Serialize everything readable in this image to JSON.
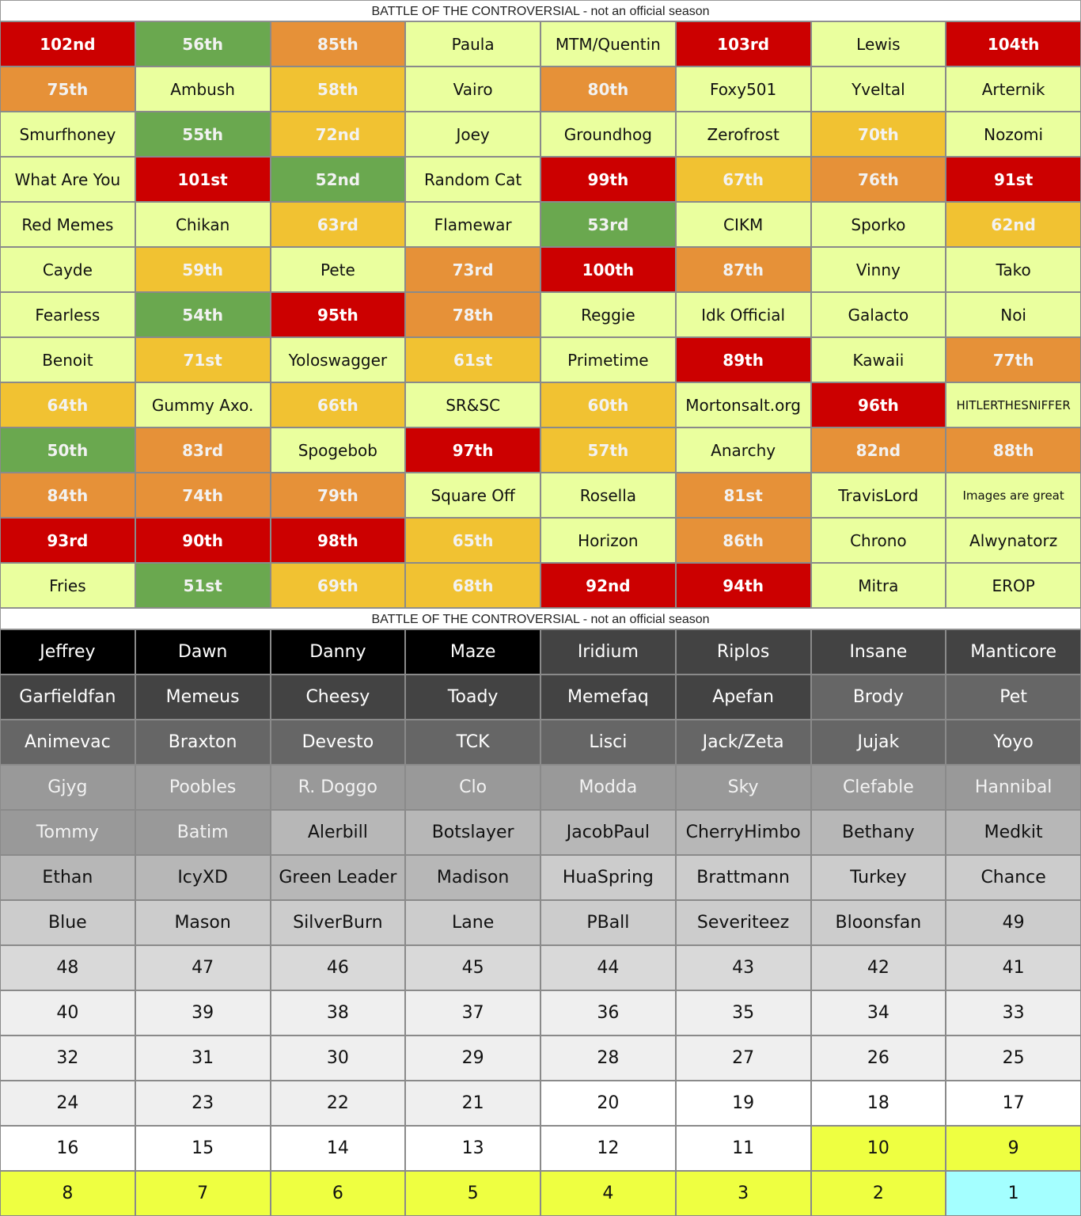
{
  "tables": [
    {
      "title": "BATTLE OF THE CONTROVERSIAL - not an official season",
      "rows": [
        [
          {
            "text": "102nd",
            "fill": "#cc0000"
          },
          {
            "text": "56th",
            "fill": "#6aa84f"
          },
          {
            "text": "85th",
            "fill": "#e69138"
          },
          {
            "text": "Paula",
            "fill": "#eaff9e"
          },
          {
            "text": "MTM/Quentin",
            "fill": "#eaff9e"
          },
          {
            "text": "103rd",
            "fill": "#cc0000"
          },
          {
            "text": "Lewis",
            "fill": "#eaff9e"
          },
          {
            "text": "104th",
            "fill": "#cc0000"
          }
        ],
        [
          {
            "text": "75th",
            "fill": "#e69138"
          },
          {
            "text": "Ambush",
            "fill": "#eaff9e"
          },
          {
            "text": "58th",
            "fill": "#f1c232"
          },
          {
            "text": "Vairo",
            "fill": "#eaff9e"
          },
          {
            "text": "80th",
            "fill": "#e69138"
          },
          {
            "text": "Foxy501",
            "fill": "#eaff9e"
          },
          {
            "text": "Yveltal",
            "fill": "#eaff9e"
          },
          {
            "text": "Arternik",
            "fill": "#eaff9e"
          }
        ],
        [
          {
            "text": "Smurfhoney",
            "fill": "#eaff9e"
          },
          {
            "text": "55th",
            "fill": "#6aa84f"
          },
          {
            "text": "72nd",
            "fill": "#f1c232"
          },
          {
            "text": "Joey",
            "fill": "#eaff9e"
          },
          {
            "text": "Groundhog",
            "fill": "#eaff9e"
          },
          {
            "text": "Zerofrost",
            "fill": "#eaff9e"
          },
          {
            "text": "70th",
            "fill": "#f1c232"
          },
          {
            "text": "Nozomi",
            "fill": "#eaff9e"
          }
        ],
        [
          {
            "text": "What Are You",
            "fill": "#eaff9e"
          },
          {
            "text": "101st",
            "fill": "#cc0000"
          },
          {
            "text": "52nd",
            "fill": "#6aa84f"
          },
          {
            "text": "Random Cat",
            "fill": "#eaff9e"
          },
          {
            "text": "99th",
            "fill": "#cc0000"
          },
          {
            "text": "67th",
            "fill": "#f1c232"
          },
          {
            "text": "76th",
            "fill": "#e69138"
          },
          {
            "text": "91st",
            "fill": "#cc0000"
          }
        ],
        [
          {
            "text": "Red Memes",
            "fill": "#eaff9e"
          },
          {
            "text": "Chikan",
            "fill": "#eaff9e"
          },
          {
            "text": "63rd",
            "fill": "#f1c232"
          },
          {
            "text": "Flamewar",
            "fill": "#eaff9e"
          },
          {
            "text": "53rd",
            "fill": "#6aa84f"
          },
          {
            "text": "CIKM",
            "fill": "#eaff9e"
          },
          {
            "text": "Sporko",
            "fill": "#eaff9e"
          },
          {
            "text": "62nd",
            "fill": "#f1c232"
          }
        ],
        [
          {
            "text": "Cayde",
            "fill": "#eaff9e"
          },
          {
            "text": "59th",
            "fill": "#f1c232"
          },
          {
            "text": "Pete",
            "fill": "#eaff9e"
          },
          {
            "text": "73rd",
            "fill": "#e69138"
          },
          {
            "text": "100th",
            "fill": "#cc0000"
          },
          {
            "text": "87th",
            "fill": "#e69138"
          },
          {
            "text": "Vinny",
            "fill": "#eaff9e"
          },
          {
            "text": "Tako",
            "fill": "#eaff9e"
          }
        ],
        [
          {
            "text": "Fearless",
            "fill": "#eaff9e"
          },
          {
            "text": "54th",
            "fill": "#6aa84f"
          },
          {
            "text": "95th",
            "fill": "#cc0000"
          },
          {
            "text": "78th",
            "fill": "#e69138"
          },
          {
            "text": "Reggie",
            "fill": "#eaff9e"
          },
          {
            "text": "Idk Official",
            "fill": "#eaff9e"
          },
          {
            "text": "Galacto",
            "fill": "#eaff9e"
          },
          {
            "text": "Noi",
            "fill": "#eaff9e"
          }
        ],
        [
          {
            "text": "Benoit",
            "fill": "#eaff9e"
          },
          {
            "text": "71st",
            "fill": "#f1c232"
          },
          {
            "text": "Yoloswagger",
            "fill": "#eaff9e"
          },
          {
            "text": "61st",
            "fill": "#f1c232"
          },
          {
            "text": "Primetime",
            "fill": "#eaff9e"
          },
          {
            "text": "89th",
            "fill": "#cc0000"
          },
          {
            "text": "Kawaii",
            "fill": "#eaff9e"
          },
          {
            "text": "77th",
            "fill": "#e69138"
          }
        ],
        [
          {
            "text": "64th",
            "fill": "#f1c232"
          },
          {
            "text": "Gummy Axo.",
            "fill": "#eaff9e"
          },
          {
            "text": "66th",
            "fill": "#f1c232"
          },
          {
            "text": "SR&SC",
            "fill": "#eaff9e"
          },
          {
            "text": "60th",
            "fill": "#f1c232"
          },
          {
            "text": "Mortonsalt.org",
            "fill": "#eaff9e"
          },
          {
            "text": "96th",
            "fill": "#cc0000"
          },
          {
            "text": "HITLERTHESNIFFER",
            "fill": "#eaff9e"
          }
        ],
        [
          {
            "text": "50th",
            "fill": "#6aa84f"
          },
          {
            "text": "83rd",
            "fill": "#e69138"
          },
          {
            "text": "Spogebob",
            "fill": "#eaff9e"
          },
          {
            "text": "97th",
            "fill": "#cc0000"
          },
          {
            "text": "57th",
            "fill": "#f1c232"
          },
          {
            "text": "Anarchy",
            "fill": "#eaff9e"
          },
          {
            "text": "82nd",
            "fill": "#e69138"
          },
          {
            "text": "88th",
            "fill": "#e69138"
          }
        ],
        [
          {
            "text": "84th",
            "fill": "#e69138"
          },
          {
            "text": "74th",
            "fill": "#e69138"
          },
          {
            "text": "79th",
            "fill": "#e69138"
          },
          {
            "text": "Square Off",
            "fill": "#eaff9e"
          },
          {
            "text": "Rosella",
            "fill": "#eaff9e"
          },
          {
            "text": "81st",
            "fill": "#e69138"
          },
          {
            "text": "TravisLord",
            "fill": "#eaff9e"
          },
          {
            "text": "Images are great",
            "fill": "#eaff9e"
          }
        ],
        [
          {
            "text": "93rd",
            "fill": "#cc0000"
          },
          {
            "text": "90th",
            "fill": "#cc0000"
          },
          {
            "text": "98th",
            "fill": "#cc0000"
          },
          {
            "text": "65th",
            "fill": "#f1c232"
          },
          {
            "text": "Horizon",
            "fill": "#eaff9e"
          },
          {
            "text": "86th",
            "fill": "#e69138"
          },
          {
            "text": "Chrono",
            "fill": "#eaff9e"
          },
          {
            "text": "Alwynatorz",
            "fill": "#eaff9e"
          }
        ],
        [
          {
            "text": "Fries",
            "fill": "#eaff9e"
          },
          {
            "text": "51st",
            "fill": "#6aa84f"
          },
          {
            "text": "69th",
            "fill": "#f1c232"
          },
          {
            "text": "68th",
            "fill": "#f1c232"
          },
          {
            "text": "92nd",
            "fill": "#cc0000"
          },
          {
            "text": "94th",
            "fill": "#cc0000"
          },
          {
            "text": "Mitra",
            "fill": "#eaff9e"
          },
          {
            "text": "EROP",
            "fill": "#eaff9e"
          }
        ]
      ]
    },
    {
      "title": "BATTLE OF THE CONTROVERSIAL - not an official season",
      "rows": [
        [
          {
            "text": "Jeffrey",
            "fill": "#000000"
          },
          {
            "text": "Dawn",
            "fill": "#000000"
          },
          {
            "text": "Danny",
            "fill": "#000000"
          },
          {
            "text": "Maze",
            "fill": "#000000"
          },
          {
            "text": "Iridium",
            "fill": "#434343"
          },
          {
            "text": "Riplos",
            "fill": "#434343"
          },
          {
            "text": "Insane",
            "fill": "#434343"
          },
          {
            "text": "Manticore",
            "fill": "#434343"
          }
        ],
        [
          {
            "text": "Garfieldfan",
            "fill": "#434343"
          },
          {
            "text": "Memeus",
            "fill": "#434343"
          },
          {
            "text": "Cheesy",
            "fill": "#434343"
          },
          {
            "text": "Toady",
            "fill": "#434343"
          },
          {
            "text": "Memefaq",
            "fill": "#434343"
          },
          {
            "text": "Apefan",
            "fill": "#434343"
          },
          {
            "text": "Brody",
            "fill": "#666666"
          },
          {
            "text": "Pet",
            "fill": "#666666"
          }
        ],
        [
          {
            "text": "Animevac",
            "fill": "#666666"
          },
          {
            "text": "Braxton",
            "fill": "#666666"
          },
          {
            "text": "Devesto",
            "fill": "#666666"
          },
          {
            "text": "TCK",
            "fill": "#666666"
          },
          {
            "text": "Lisci",
            "fill": "#666666"
          },
          {
            "text": "Jack/Zeta",
            "fill": "#666666"
          },
          {
            "text": "Jujak",
            "fill": "#666666"
          },
          {
            "text": "Yoyo",
            "fill": "#666666"
          }
        ],
        [
          {
            "text": "Gjyg",
            "fill": "#999999"
          },
          {
            "text": "Poobles",
            "fill": "#999999"
          },
          {
            "text": "R. Doggo",
            "fill": "#999999"
          },
          {
            "text": "Clo",
            "fill": "#999999"
          },
          {
            "text": "Modda",
            "fill": "#999999"
          },
          {
            "text": "Sky",
            "fill": "#999999"
          },
          {
            "text": "Clefable",
            "fill": "#999999"
          },
          {
            "text": "Hannibal",
            "fill": "#999999"
          }
        ],
        [
          {
            "text": "Tommy",
            "fill": "#999999"
          },
          {
            "text": "Batim",
            "fill": "#999999"
          },
          {
            "text": "Alerbill",
            "fill": "#b7b7b7"
          },
          {
            "text": "Botslayer",
            "fill": "#b7b7b7"
          },
          {
            "text": "JacobPaul",
            "fill": "#b7b7b7"
          },
          {
            "text": "CherryHimbo",
            "fill": "#b7b7b7"
          },
          {
            "text": "Bethany",
            "fill": "#b7b7b7"
          },
          {
            "text": "Medkit",
            "fill": "#b7b7b7"
          }
        ],
        [
          {
            "text": "Ethan",
            "fill": "#b7b7b7"
          },
          {
            "text": "IcyXD",
            "fill": "#b7b7b7"
          },
          {
            "text": "Green Leader",
            "fill": "#b7b7b7"
          },
          {
            "text": "Madison",
            "fill": "#b7b7b7"
          },
          {
            "text": "HuaSpring",
            "fill": "#cccccc"
          },
          {
            "text": "Brattmann",
            "fill": "#cccccc"
          },
          {
            "text": "Turkey",
            "fill": "#cccccc"
          },
          {
            "text": "Chance",
            "fill": "#cccccc"
          }
        ],
        [
          {
            "text": "Blue",
            "fill": "#cccccc"
          },
          {
            "text": "Mason",
            "fill": "#cccccc"
          },
          {
            "text": "SilverBurn",
            "fill": "#cccccc"
          },
          {
            "text": "Lane",
            "fill": "#cccccc"
          },
          {
            "text": "PBall",
            "fill": "#cccccc"
          },
          {
            "text": "Severiteez",
            "fill": "#cccccc"
          },
          {
            "text": "Bloonsfan",
            "fill": "#cccccc"
          },
          {
            "text": "49",
            "fill": "#cccccc"
          }
        ],
        [
          {
            "text": "48",
            "fill": "#d9d9d9"
          },
          {
            "text": "47",
            "fill": "#d9d9d9"
          },
          {
            "text": "46",
            "fill": "#d9d9d9"
          },
          {
            "text": "45",
            "fill": "#d9d9d9"
          },
          {
            "text": "44",
            "fill": "#d9d9d9"
          },
          {
            "text": "43",
            "fill": "#d9d9d9"
          },
          {
            "text": "42",
            "fill": "#d9d9d9"
          },
          {
            "text": "41",
            "fill": "#d9d9d9"
          }
        ],
        [
          {
            "text": "40",
            "fill": "#efefef"
          },
          {
            "text": "39",
            "fill": "#efefef"
          },
          {
            "text": "38",
            "fill": "#efefef"
          },
          {
            "text": "37",
            "fill": "#efefef"
          },
          {
            "text": "36",
            "fill": "#efefef"
          },
          {
            "text": "35",
            "fill": "#efefef"
          },
          {
            "text": "34",
            "fill": "#efefef"
          },
          {
            "text": "33",
            "fill": "#efefef"
          }
        ],
        [
          {
            "text": "32",
            "fill": "#efefef"
          },
          {
            "text": "31",
            "fill": "#efefef"
          },
          {
            "text": "30",
            "fill": "#efefef"
          },
          {
            "text": "29",
            "fill": "#efefef"
          },
          {
            "text": "28",
            "fill": "#efefef"
          },
          {
            "text": "27",
            "fill": "#efefef"
          },
          {
            "text": "26",
            "fill": "#efefef"
          },
          {
            "text": "25",
            "fill": "#efefef"
          }
        ],
        [
          {
            "text": "24",
            "fill": "#efefef"
          },
          {
            "text": "23",
            "fill": "#efefef"
          },
          {
            "text": "22",
            "fill": "#efefef"
          },
          {
            "text": "21",
            "fill": "#efefef"
          },
          {
            "text": "20",
            "fill": "#ffffff"
          },
          {
            "text": "19",
            "fill": "#ffffff"
          },
          {
            "text": "18",
            "fill": "#ffffff"
          },
          {
            "text": "17",
            "fill": "#ffffff"
          }
        ],
        [
          {
            "text": "16",
            "fill": "#ffffff"
          },
          {
            "text": "15",
            "fill": "#ffffff"
          },
          {
            "text": "14",
            "fill": "#ffffff"
          },
          {
            "text": "13",
            "fill": "#ffffff"
          },
          {
            "text": "12",
            "fill": "#ffffff"
          },
          {
            "text": "11",
            "fill": "#ffffff"
          },
          {
            "text": "10",
            "fill": "#eeff41"
          },
          {
            "text": "9",
            "fill": "#eeff41"
          }
        ],
        [
          {
            "text": "8",
            "fill": "#eeff41"
          },
          {
            "text": "7",
            "fill": "#eeff41"
          },
          {
            "text": "6",
            "fill": "#eeff41"
          },
          {
            "text": "5",
            "fill": "#eeff41"
          },
          {
            "text": "4",
            "fill": "#eeff41"
          },
          {
            "text": "3",
            "fill": "#eeff41"
          },
          {
            "text": "2",
            "fill": "#eeff41"
          },
          {
            "text": "1",
            "fill": "#a4ffff"
          }
        ]
      ]
    }
  ]
}
